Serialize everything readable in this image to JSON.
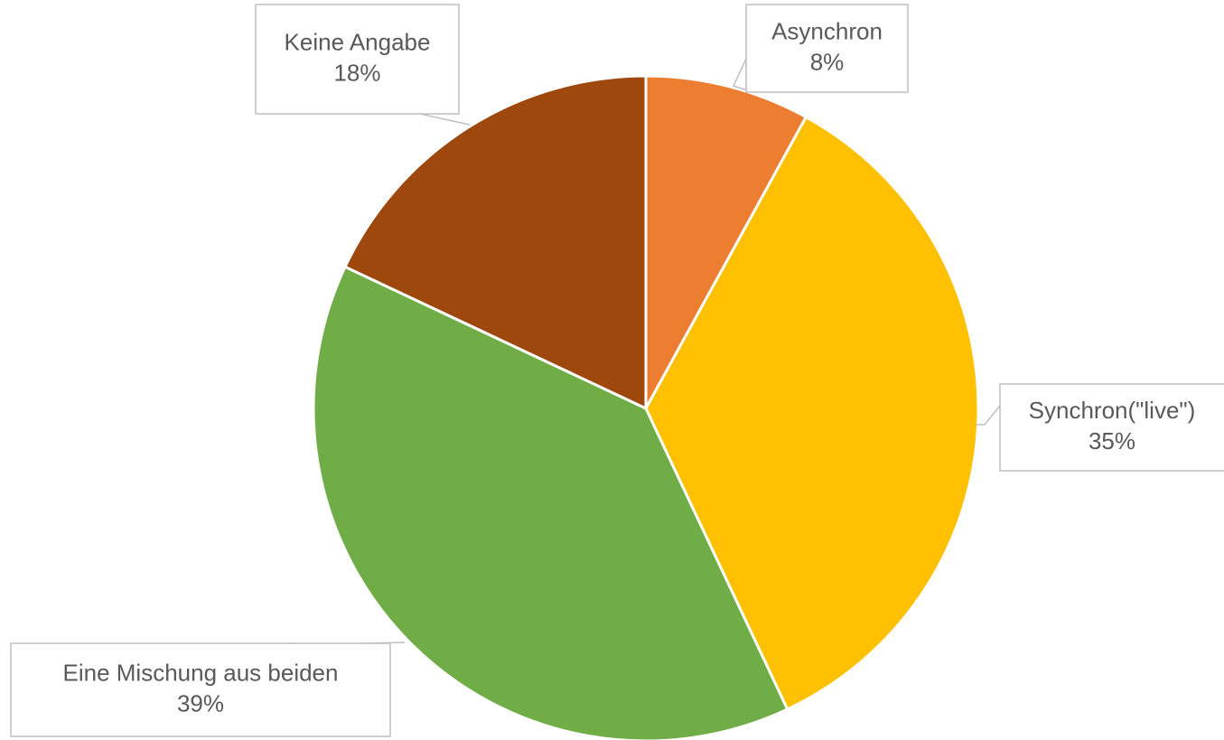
{
  "chart_data": {
    "type": "pie",
    "categories": [
      "Asynchron",
      "Synchron(\"live\")",
      "Eine Mischung aus beiden",
      "Keine Angabe"
    ],
    "values": [
      8,
      35,
      39,
      18
    ],
    "value_labels": [
      "8%",
      "35%",
      "39%",
      "18%"
    ],
    "colors": [
      "#ed7d31",
      "#ffc000",
      "#70ad47",
      "#9e480e"
    ]
  }
}
